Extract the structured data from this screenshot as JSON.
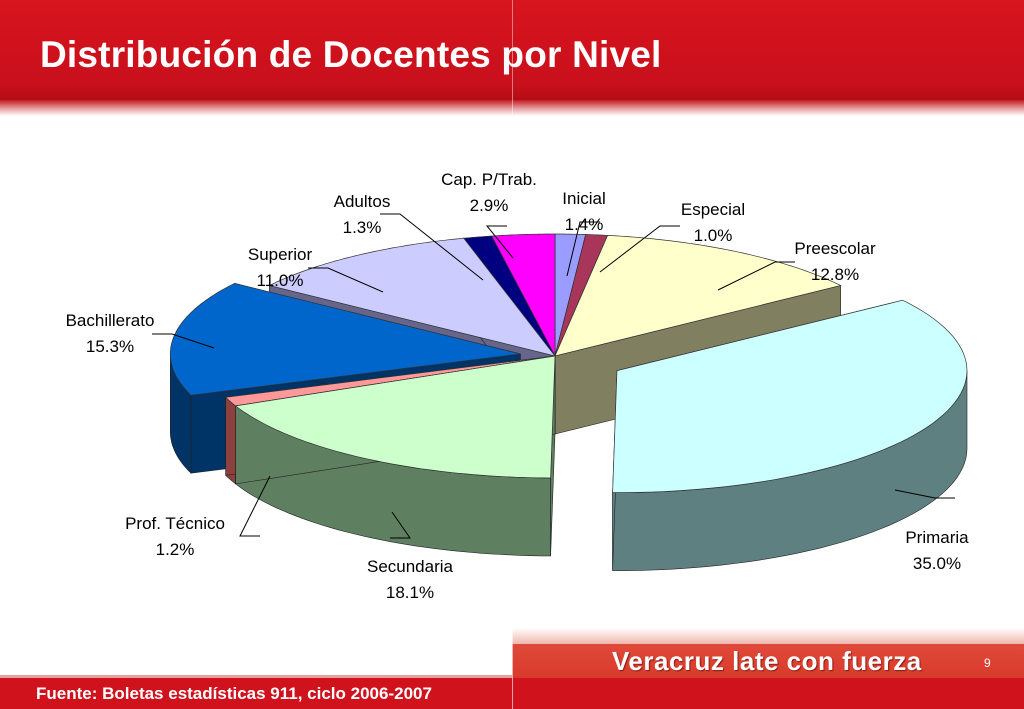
{
  "header": {
    "title": "Distribución de Docentes por Nivel"
  },
  "chart_data": {
    "type": "pie",
    "title": "",
    "slices": [
      {
        "label": "Inicial",
        "value": 1.4,
        "display": "1.4%",
        "color": "#9a9cff",
        "side": "#5a5cb8",
        "explode": 0.0
      },
      {
        "label": "Especial",
        "value": 1.0,
        "display": "1.0%",
        "color": "#a8365a",
        "side": "#6e1d39",
        "explode": 0.0
      },
      {
        "label": "Preescolar",
        "value": 12.8,
        "display": "12.8%",
        "color": "#ffffcc",
        "side": "#808060",
        "explode": 0.0
      },
      {
        "label": "Primaria",
        "value": 35.0,
        "display": "35.0%",
        "color": "#ccffff",
        "side": "#5f8080",
        "explode": 70
      },
      {
        "label": "Secundaria",
        "value": 18.1,
        "display": "18.1%",
        "color": "#ccffcc",
        "side": "#5f8060",
        "explode": 0.0
      },
      {
        "label": "Prof. Técnico",
        "value": 1.2,
        "display": "1.2%",
        "color": "#ff9999",
        "side": "#8c4040",
        "explode": 0.0
      },
      {
        "label": "Bachillerato",
        "value": 15.3,
        "display": "15.3%",
        "color": "#0066cc",
        "side": "#003366",
        "explode": 35
      },
      {
        "label": "Superior",
        "value": 11.0,
        "display": "11.0%",
        "color": "#ccccff",
        "side": "#66668c",
        "explode": 0.0
      },
      {
        "label": "Adultos",
        "value": 1.3,
        "display": "1.3%",
        "color": "#000080",
        "side": "#00003c",
        "explode": 0.0
      },
      {
        "label": "Cap. P/Trab.",
        "value": 2.9,
        "display": "2.9%",
        "color": "#ff00ff",
        "side": "#990099",
        "explode": 0.0
      }
    ]
  },
  "footer": {
    "source": "Fuente: Boletas estadísticas 911, ciclo 2006-2007",
    "slogan": "Veracruz late con fuerza",
    "page_number": "9"
  }
}
